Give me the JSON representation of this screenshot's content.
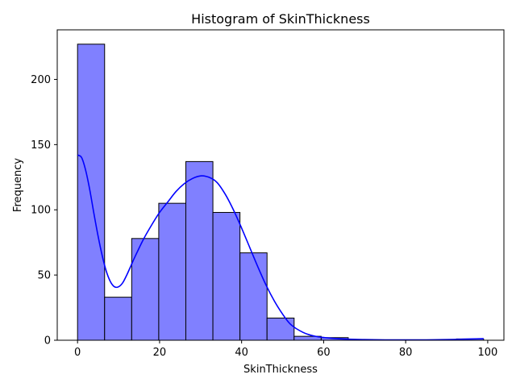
{
  "chart_data": {
    "type": "bar",
    "title": "Histogram of SkinThickness",
    "xlabel": "SkinThickness",
    "ylabel": "Frequency",
    "xlim": [
      -4.95,
      103.95
    ],
    "ylim": [
      0,
      238
    ],
    "xticks": [
      0,
      20,
      40,
      60,
      80,
      100
    ],
    "yticks": [
      0,
      50,
      100,
      150,
      200
    ],
    "bin_width": 6.6,
    "bins": [
      {
        "x0": 0.0,
        "x1": 6.6,
        "count": 227
      },
      {
        "x0": 6.6,
        "x1": 13.2,
        "count": 33
      },
      {
        "x0": 13.2,
        "x1": 19.8,
        "count": 78
      },
      {
        "x0": 19.8,
        "x1": 26.4,
        "count": 105
      },
      {
        "x0": 26.4,
        "x1": 33.0,
        "count": 137
      },
      {
        "x0": 33.0,
        "x1": 39.6,
        "count": 98
      },
      {
        "x0": 39.6,
        "x1": 46.2,
        "count": 67
      },
      {
        "x0": 46.2,
        "x1": 52.8,
        "count": 17
      },
      {
        "x0": 52.8,
        "x1": 59.4,
        "count": 3
      },
      {
        "x0": 59.4,
        "x1": 66.0,
        "count": 2
      },
      {
        "x0": 66.0,
        "x1": 72.6,
        "count": 0
      },
      {
        "x0": 72.6,
        "x1": 79.2,
        "count": 0
      },
      {
        "x0": 79.2,
        "x1": 85.8,
        "count": 0
      },
      {
        "x0": 85.8,
        "x1": 92.4,
        "count": 0
      },
      {
        "x0": 92.4,
        "x1": 99.0,
        "count": 1
      }
    ],
    "kde": {
      "x": [
        0,
        1,
        2,
        3,
        4,
        5,
        6,
        7,
        8,
        9,
        10,
        11,
        12,
        13,
        14,
        16,
        18,
        20,
        22,
        24,
        26,
        28,
        30,
        32,
        34,
        36,
        38,
        40,
        42,
        44,
        46,
        48,
        50,
        52,
        55,
        58,
        62,
        66,
        70,
        75,
        80,
        85,
        90,
        95,
        99
      ],
      "y": [
        142,
        140,
        130,
        115,
        97,
        80,
        65,
        53,
        45,
        41,
        41,
        44,
        50,
        57,
        64,
        77,
        88,
        98,
        106,
        114,
        120,
        124,
        126,
        125,
        121,
        112,
        100,
        86,
        71,
        56,
        42,
        30,
        20,
        12,
        6,
        3,
        1.5,
        0.8,
        0.5,
        0.3,
        0.3,
        0.3,
        0.5,
        0.9,
        1.2
      ]
    },
    "colors": {
      "bar_fill": "#8080ff",
      "bar_edge": "#000000",
      "kde_line": "#0000ff"
    },
    "grid": false,
    "legend": "none"
  }
}
